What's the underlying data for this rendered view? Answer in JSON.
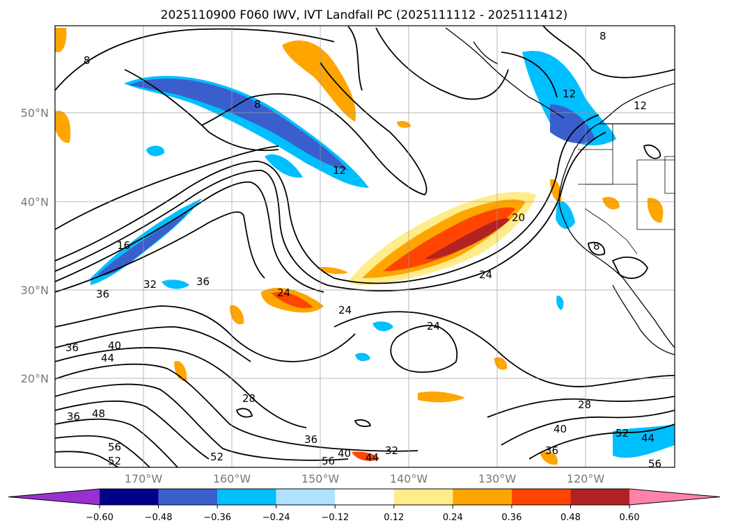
{
  "title": "2025110900 F060 IWV, IVT Landfall PC (2025111112 - 2025111412)",
  "lat_labels": [
    "50°N",
    "40°N",
    "30°N",
    "20°N"
  ],
  "lon_labels": [
    "170°W",
    "160°W",
    "150°W",
    "140°W",
    "130°W",
    "120°W"
  ],
  "colorbar": {
    "ticks": [
      "−0.60",
      "−0.48",
      "−0.36",
      "−0.24",
      "−0.12",
      "0.12",
      "0.24",
      "0.36",
      "0.48",
      "0.60"
    ],
    "colors": [
      "#9b30d0",
      "#00008b",
      "#3a5fcd",
      "#00bfff",
      "#b0e2ff",
      "#ffffff",
      "#ffec8b",
      "#ffa500",
      "#ff4500",
      "#b22222",
      "#ff82ab"
    ]
  },
  "contour_labels": [
    "8",
    "8",
    "12",
    "8",
    "12",
    "12",
    "16",
    "20",
    "24",
    "24",
    "24",
    "24",
    "32",
    "36",
    "36",
    "36",
    "40",
    "44",
    "36",
    "48",
    "28",
    "36",
    "40",
    "56",
    "52",
    "52",
    "56",
    "44",
    "32",
    "28",
    "40",
    "36",
    "52",
    "44",
    "56",
    "8"
  ],
  "legend_colors": {
    "positive": "#ff4500",
    "negative": "#3a5fcd"
  }
}
